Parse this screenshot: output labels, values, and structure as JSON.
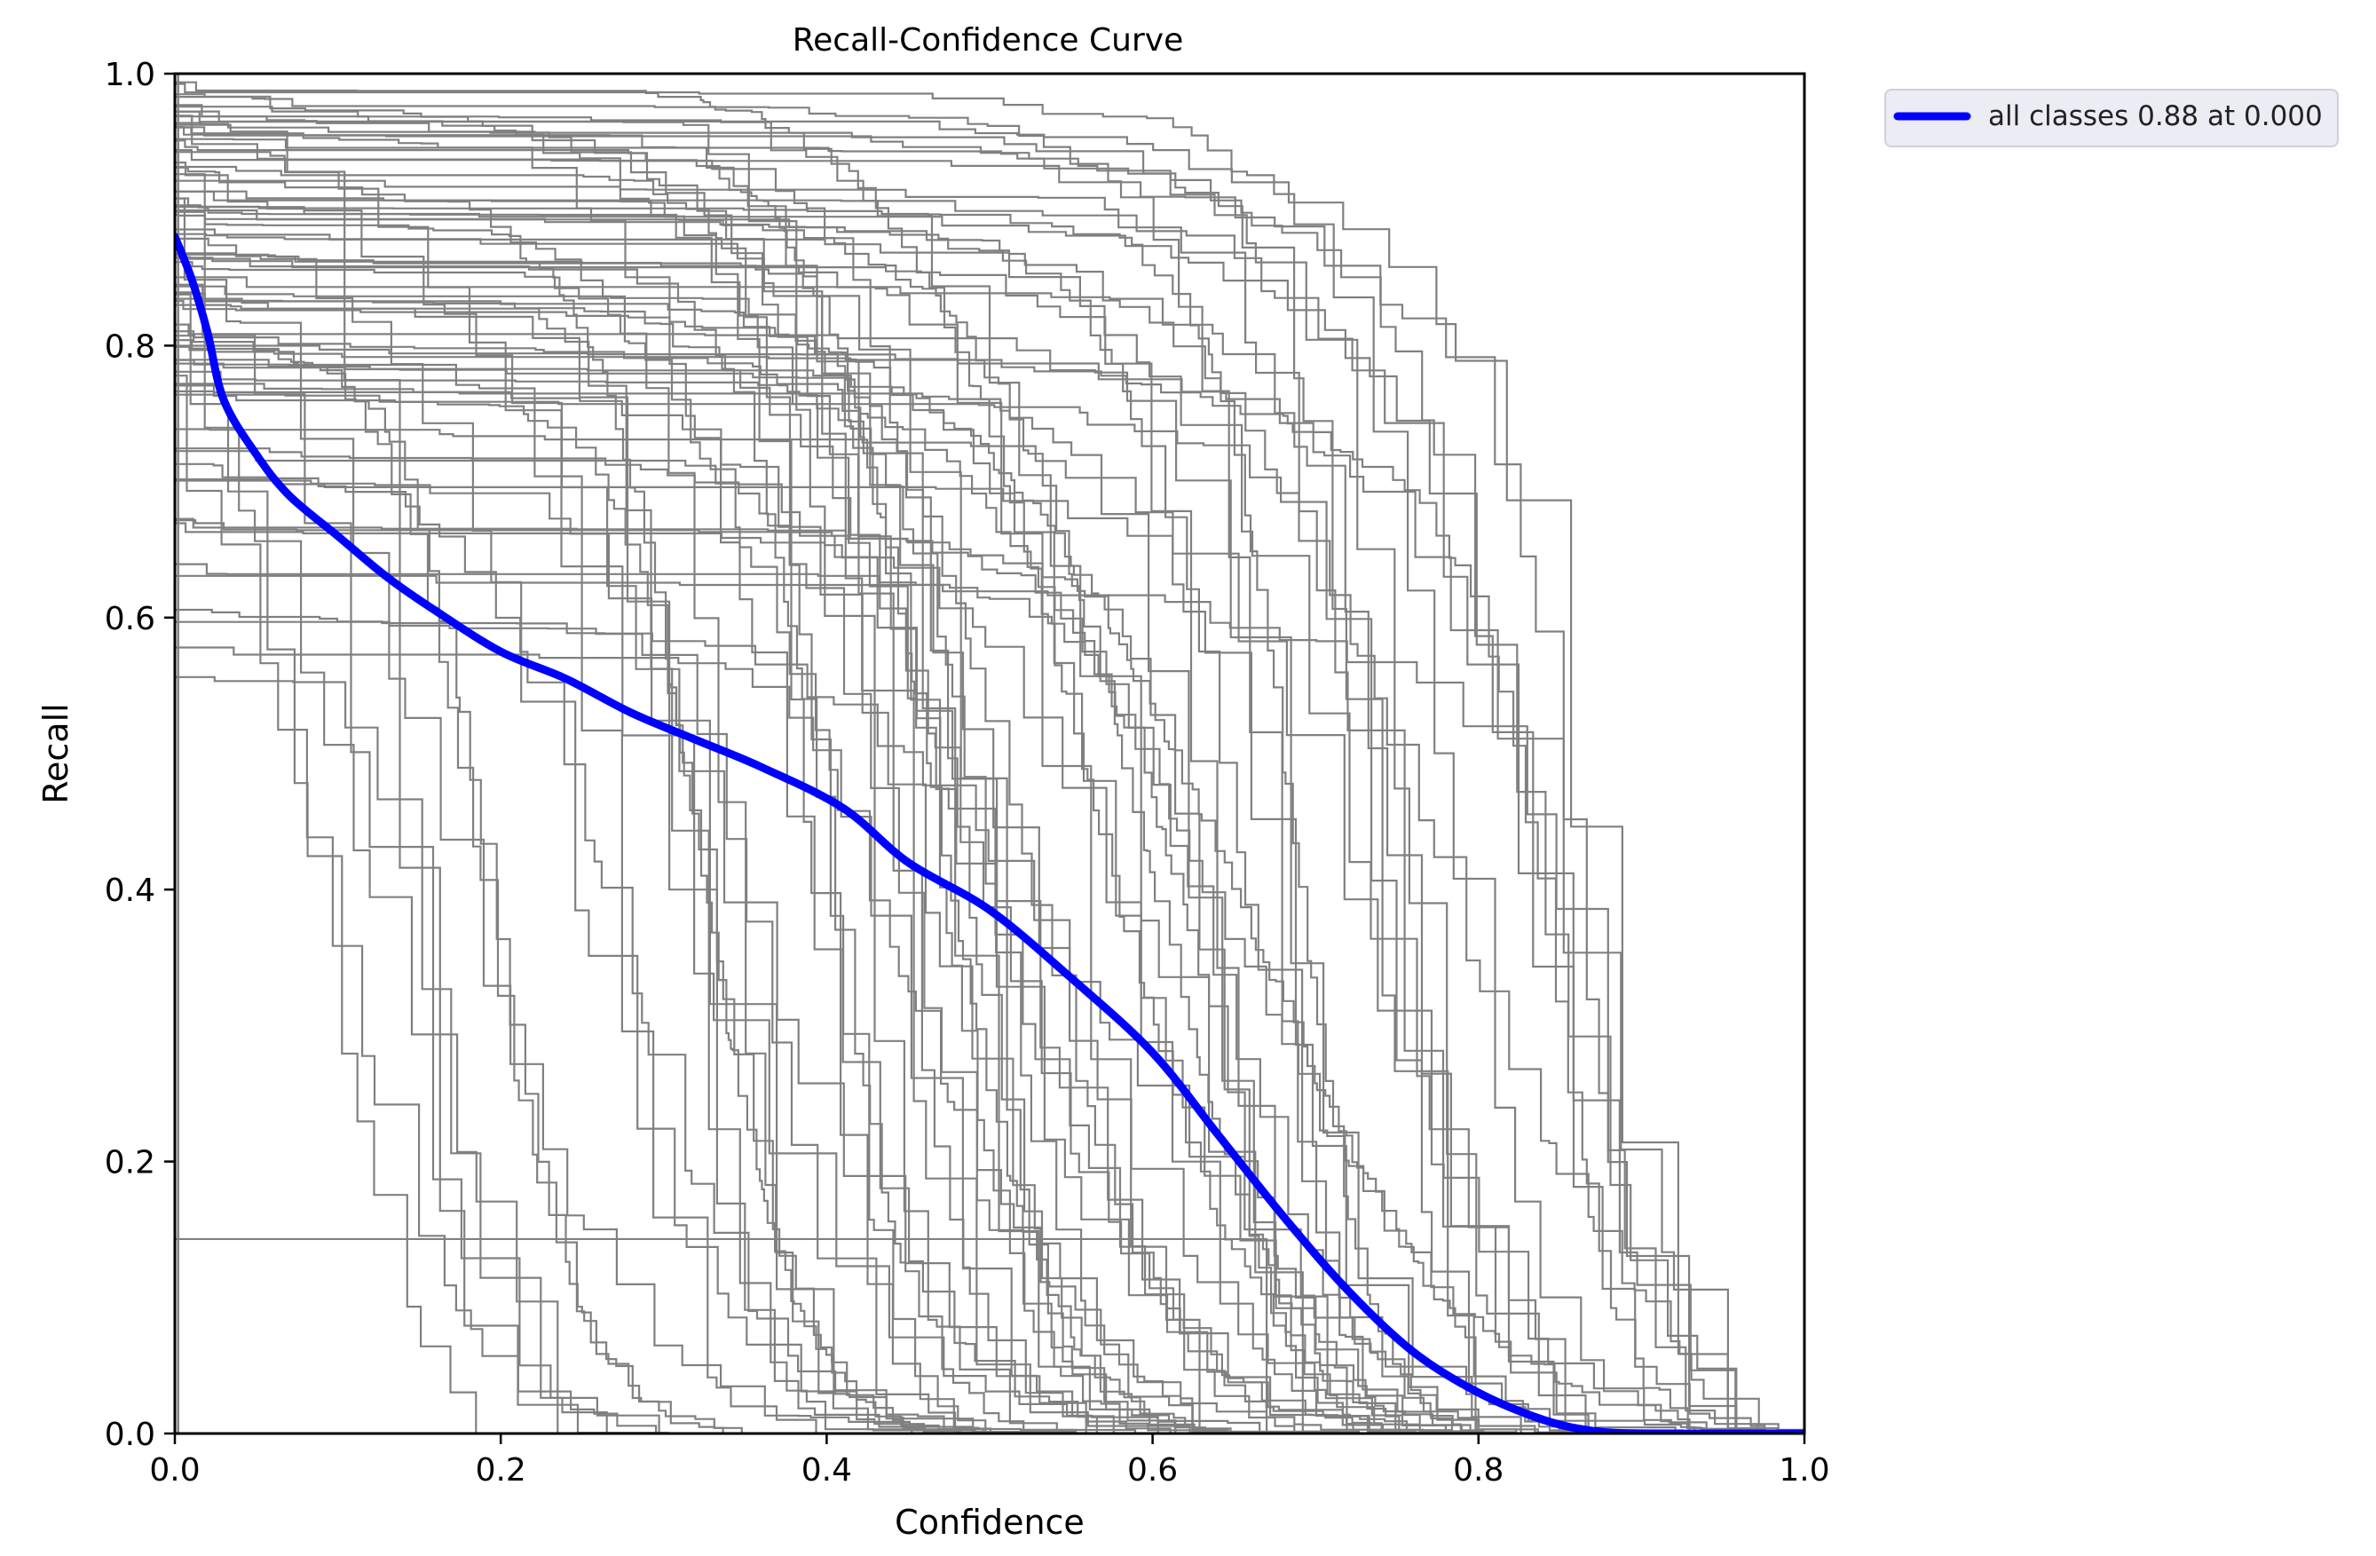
{
  "chart_data": {
    "type": "line",
    "title": "Recall-Confidence Curve",
    "xlabel": "Confidence",
    "ylabel": "Recall",
    "xlim": [
      0.0,
      1.0
    ],
    "ylim": [
      0.0,
      1.0
    ],
    "x_ticks": [
      "0.0",
      "0.2",
      "0.4",
      "0.6",
      "0.8",
      "1.0"
    ],
    "y_ticks": [
      "0.0",
      "0.2",
      "0.4",
      "0.6",
      "0.8",
      "1.0"
    ],
    "grid": false,
    "legend_position": "outside-top-right",
    "colors": {
      "mean": "#0000ff",
      "per_class": "#808080"
    },
    "legend": [
      "all classes 0.88 at 0.000"
    ],
    "series": [
      {
        "name": "all classes 0.88 at 0.000",
        "x": [
          0.0,
          0.01,
          0.02,
          0.03,
          0.05,
          0.07,
          0.1,
          0.13,
          0.16,
          0.2,
          0.24,
          0.28,
          0.32,
          0.36,
          0.41,
          0.45,
          0.5,
          0.55,
          0.6,
          0.64,
          0.68,
          0.72,
          0.76,
          0.8,
          0.84,
          0.87,
          0.9,
          0.95,
          1.0
        ],
        "y": [
          0.88,
          0.85,
          0.81,
          0.76,
          0.72,
          0.69,
          0.66,
          0.63,
          0.605,
          0.575,
          0.555,
          0.53,
          0.51,
          0.49,
          0.46,
          0.42,
          0.385,
          0.335,
          0.28,
          0.22,
          0.16,
          0.105,
          0.06,
          0.03,
          0.01,
          0.002,
          0.0,
          0.0,
          0.0
        ]
      }
    ],
    "per_class_curves_shown": 80
  }
}
